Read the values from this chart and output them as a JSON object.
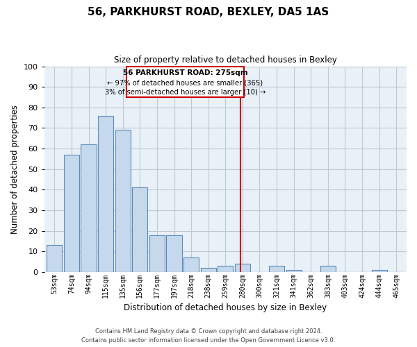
{
  "title": "56, PARKHURST ROAD, BEXLEY, DA5 1AS",
  "subtitle": "Size of property relative to detached houses in Bexley",
  "xlabel": "Distribution of detached houses by size in Bexley",
  "ylabel": "Number of detached properties",
  "bar_labels": [
    "53sqm",
    "74sqm",
    "94sqm",
    "115sqm",
    "135sqm",
    "156sqm",
    "177sqm",
    "197sqm",
    "218sqm",
    "238sqm",
    "259sqm",
    "280sqm",
    "300sqm",
    "321sqm",
    "341sqm",
    "362sqm",
    "383sqm",
    "403sqm",
    "424sqm",
    "444sqm",
    "465sqm"
  ],
  "bar_values": [
    13,
    57,
    62,
    76,
    69,
    41,
    18,
    18,
    7,
    2,
    3,
    4,
    0,
    3,
    1,
    0,
    3,
    0,
    0,
    1,
    0
  ],
  "bar_color": "#c6d9ec",
  "bar_edgecolor": "#5b8db8",
  "vline_x_index": 10.9,
  "highlight_line_label": "56 PARKHURST ROAD: 275sqm",
  "annotation_line1": "← 97% of detached houses are smaller (365)",
  "annotation_line2": "3% of semi-detached houses are larger (10) →",
  "vline_color": "#cc0000",
  "ylim": [
    0,
    100
  ],
  "yticks": [
    0,
    10,
    20,
    30,
    40,
    50,
    60,
    70,
    80,
    90,
    100
  ],
  "plot_bgcolor": "#e8f0f8",
  "background_color": "#ffffff",
  "grid_color": "#c0c8d0",
  "footer_line1": "Contains HM Land Registry data © Crown copyright and database right 2024.",
  "footer_line2": "Contains public sector information licensed under the Open Government Licence v3.0."
}
